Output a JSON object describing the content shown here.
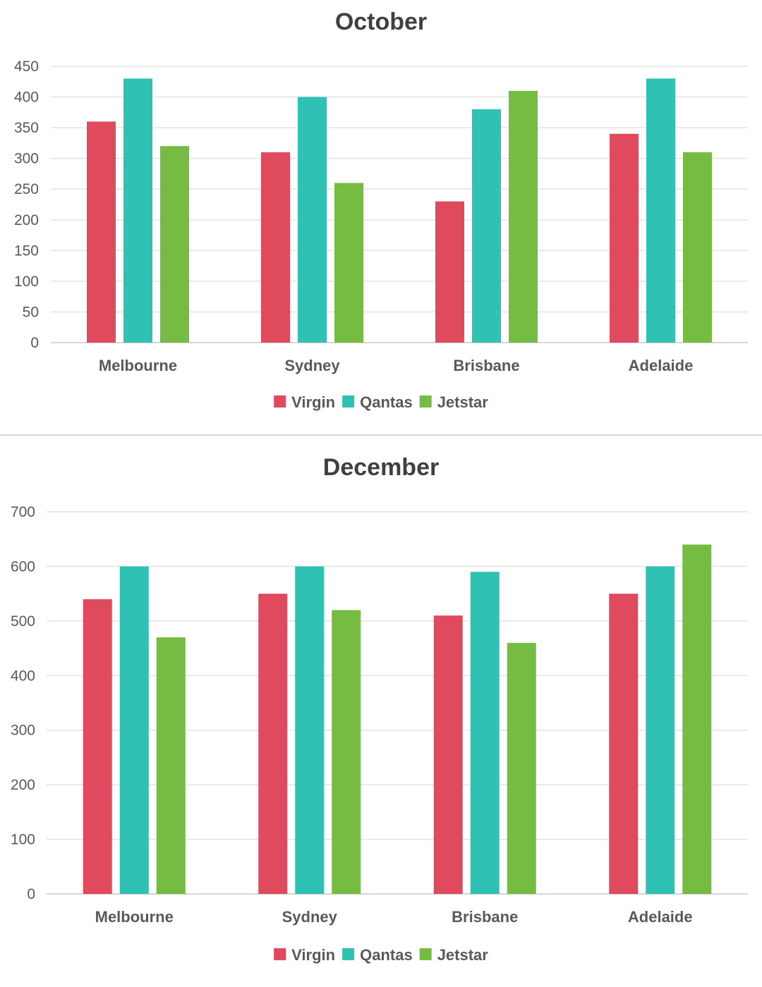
{
  "chart_data": [
    {
      "type": "bar",
      "title": "October",
      "categories": [
        "Melbourne",
        "Sydney",
        "Brisbane",
        "Adelaide"
      ],
      "series": [
        {
          "name": "Virgin",
          "color": "#e04a5f",
          "values": [
            360,
            310,
            230,
            340
          ]
        },
        {
          "name": "Qantas",
          "color": "#2ec1b4",
          "values": [
            430,
            400,
            380,
            430
          ]
        },
        {
          "name": "Jetstar",
          "color": "#76bc43",
          "values": [
            320,
            260,
            410,
            310
          ]
        }
      ],
      "ylim": [
        0,
        450
      ],
      "yticks": [
        0,
        50,
        100,
        150,
        200,
        250,
        300,
        350,
        400,
        450
      ],
      "xlabel": "",
      "ylabel": "",
      "grid": true,
      "legend_position": "bottom"
    },
    {
      "type": "bar",
      "title": "December",
      "categories": [
        "Melbourne",
        "Sydney",
        "Brisbane",
        "Adelaide"
      ],
      "series": [
        {
          "name": "Virgin",
          "color": "#e04a5f",
          "values": [
            540,
            550,
            510,
            550
          ]
        },
        {
          "name": "Qantas",
          "color": "#2ec1b4",
          "values": [
            600,
            600,
            590,
            600
          ]
        },
        {
          "name": "Jetstar",
          "color": "#76bc43",
          "values": [
            470,
            520,
            460,
            640
          ]
        }
      ],
      "ylim": [
        0,
        700
      ],
      "yticks": [
        0,
        100,
        200,
        300,
        400,
        500,
        600,
        700
      ],
      "xlabel": "",
      "ylabel": "",
      "grid": true,
      "legend_position": "bottom"
    }
  ]
}
